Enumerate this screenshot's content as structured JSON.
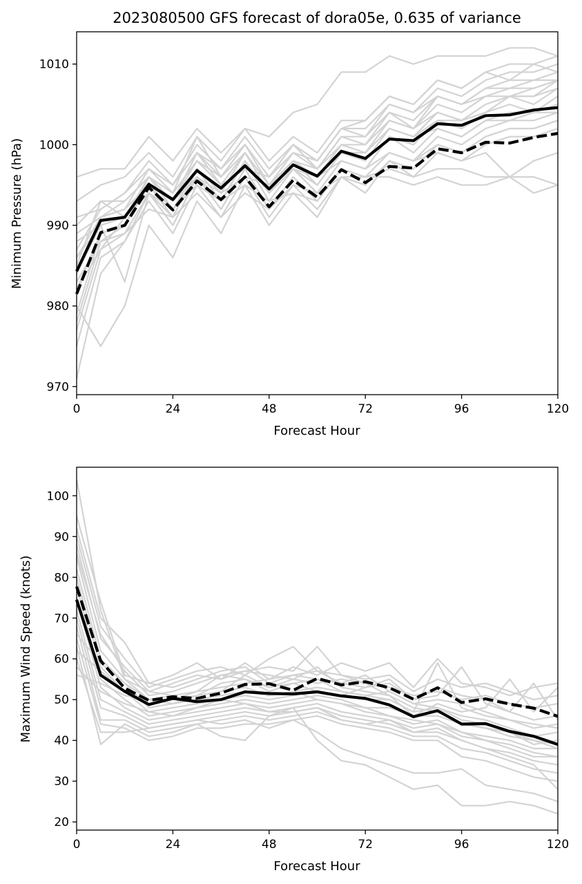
{
  "chart_data": [
    {
      "type": "line",
      "title": "2023080500 GFS forecast of dora05e, 0.635 of variance",
      "xlabel": "Forecast Hour",
      "ylabel": "Minimum Pressure (hPa)",
      "xlim": [
        0,
        120
      ],
      "ylim": [
        969,
        1014
      ],
      "xticks": [
        0,
        24,
        48,
        72,
        96,
        120
      ],
      "yticks": [
        970,
        980,
        990,
        1000,
        1010
      ],
      "grid": false,
      "x": [
        0,
        6,
        12,
        18,
        24,
        30,
        36,
        42,
        48,
        54,
        60,
        66,
        72,
        78,
        84,
        90,
        96,
        102,
        108,
        114,
        120
      ],
      "ensemble_color": "#d3d3d3",
      "ensemble": [
        [
          984,
          991,
          992,
          997,
          994,
          1001,
          996,
          1000,
          996,
          1000,
          997,
          1001,
          1001,
          1004,
          1003,
          1006,
          1005,
          1006,
          1007,
          1007,
          1008
        ],
        [
          978,
          988,
          990,
          995,
          992,
          996,
          993,
          998,
          993,
          997,
          994,
          998,
          997,
          1001,
          1000,
          1003,
          1002,
          1004,
          1005,
          1004,
          1006
        ],
        [
          990,
          993,
          991,
          996,
          993,
          999,
          995,
          999,
          995,
          998,
          996,
          1000,
          999,
          1003,
          1002,
          1004,
          1003,
          1005,
          1006,
          1006,
          1007
        ],
        [
          975,
          986,
          988,
          994,
          990,
          996,
          992,
          997,
          992,
          996,
          993,
          997,
          996,
          999,
          998,
          1001,
          1000,
          1002,
          1003,
          1003,
          1004
        ],
        [
          987,
          992,
          994,
          998,
          995,
          1000,
          997,
          1001,
          997,
          1000,
          998,
          1002,
          1002,
          1005,
          1004,
          1007,
          1006,
          1008,
          1009,
          1009,
          1010
        ],
        [
          982,
          989,
          990,
          996,
          992,
          997,
          994,
          999,
          994,
          998,
          995,
          999,
          998,
          1002,
          1001,
          1003,
          1003,
          1004,
          1006,
          1005,
          1007
        ],
        [
          971,
          984,
          988,
          993,
          989,
          995,
          991,
          996,
          991,
          995,
          992,
          996,
          995,
          998,
          997,
          1000,
          999,
          1001,
          1002,
          1002,
          1003
        ],
        [
          993,
          995,
          996,
          999,
          996,
          1001,
          998,
          1002,
          998,
          1001,
          999,
          1003,
          1003,
          1006,
          1005,
          1008,
          1007,
          1009,
          1010,
          1010,
          1011
        ],
        [
          980,
          975,
          980,
          990,
          986,
          993,
          989,
          995,
          990,
          994,
          991,
          996,
          994,
          998,
          996,
          999,
          998,
          1000,
          1001,
          1001,
          1002
        ],
        [
          986,
          990,
          983,
          994,
          991,
          997,
          993,
          998,
          994,
          997,
          995,
          999,
          999,
          1002,
          1001,
          1004,
          1003,
          1005,
          1006,
          1006,
          1008
        ],
        [
          996,
          997,
          997,
          1001,
          998,
          1002,
          999,
          1002,
          1001,
          1004,
          1005,
          1009,
          1009,
          1011,
          1010,
          1011,
          1011,
          1011,
          1012,
          1012,
          1011
        ],
        [
          985,
          993,
          993,
          996,
          994,
          998,
          995,
          997,
          996,
          1000,
          998,
          1002,
          1003,
          1006,
          1005,
          1008,
          1007,
          1009,
          1008,
          1010,
          1009
        ],
        [
          989,
          991,
          992,
          995,
          993,
          996,
          994,
          996,
          995,
          997,
          996,
          998,
          997,
          999,
          998,
          999,
          998,
          999,
          996,
          998,
          999
        ],
        [
          983,
          988,
          989,
          992,
          991,
          994,
          991,
          994,
          992,
          995,
          994,
          996,
          996,
          996,
          995,
          996,
          995,
          995,
          996,
          996,
          995
        ],
        [
          988,
          990,
          991,
          994,
          992,
          995,
          993,
          995,
          993,
          994,
          993,
          997,
          996,
          997,
          996,
          997,
          997,
          996,
          996,
          994,
          995
        ],
        [
          977,
          987,
          991,
          995,
          993,
          999,
          996,
          1000,
          995,
          999,
          997,
          1001,
          1000,
          1004,
          1002,
          1006,
          1005,
          1007,
          1008,
          1008,
          1009
        ],
        [
          991,
          992,
          994,
          997,
          995,
          999,
          997,
          1000,
          996,
          999,
          998,
          1002,
          1001,
          1005,
          1004,
          1006,
          1005,
          1007,
          1007,
          1008,
          1008
        ],
        [
          984,
          990,
          991,
          996,
          993,
          998,
          995,
          999,
          995,
          998,
          996,
          1000,
          999,
          1002,
          1001,
          1002,
          1001,
          1003,
          1004,
          1004,
          1005
        ],
        [
          979,
          989,
          990,
          995,
          991,
          997,
          993,
          998,
          993,
          997,
          994,
          998,
          997,
          1001,
          999,
          1002,
          1001,
          1003,
          1003,
          1004,
          1004
        ],
        [
          986,
          991,
          993,
          996,
          994,
          998,
          996,
          999,
          995,
          998,
          997,
          1000,
          1000,
          1003,
          1002,
          1005,
          1004,
          1006,
          1006,
          1007,
          1008
        ],
        [
          982,
          987,
          989,
          994,
          990,
          996,
          992,
          997,
          992,
          996,
          993,
          997,
          996,
          999,
          998,
          1000,
          999,
          1001,
          1002,
          1002,
          1003
        ]
      ],
      "series": [
        {
          "style": "solid",
          "color": "#000000",
          "values": [
            984.3,
            990.6,
            991.0,
            995.1,
            993.2,
            996.8,
            994.6,
            997.4,
            994.5,
            997.5,
            996.1,
            999.2,
            998.3,
            1000.7,
            1000.5,
            1002.6,
            1002.4,
            1003.6,
            1003.7,
            1004.3,
            1004.6
          ]
        },
        {
          "style": "dashed",
          "color": "#000000",
          "values": [
            981.5,
            989.1,
            990.0,
            994.7,
            991.9,
            995.5,
            993.2,
            996.0,
            992.3,
            995.6,
            993.5,
            996.9,
            995.3,
            997.3,
            997.1,
            999.5,
            999.0,
            1000.3,
            1000.2,
            1000.9,
            1001.4
          ]
        }
      ]
    },
    {
      "type": "line",
      "title": "",
      "xlabel": "Forecast Hour",
      "ylabel": "Maximum Wind Speed (knots)",
      "xlim": [
        0,
        120
      ],
      "ylim": [
        18,
        107
      ],
      "xticks": [
        0,
        24,
        48,
        72,
        96,
        120
      ],
      "yticks": [
        20,
        30,
        40,
        50,
        60,
        70,
        80,
        90,
        100
      ],
      "grid": false,
      "x": [
        0,
        6,
        12,
        18,
        24,
        30,
        36,
        42,
        48,
        54,
        60,
        66,
        72,
        78,
        84,
        90,
        96,
        102,
        108,
        114,
        120
      ],
      "ensemble_color": "#d3d3d3",
      "ensemble": [
        [
          104,
          72,
          55,
          52,
          54,
          56,
          55,
          59,
          55,
          58,
          56,
          59,
          57,
          59,
          53,
          60,
          54,
          53,
          51,
          53,
          54
        ],
        [
          92,
          70,
          64,
          54,
          53,
          55,
          57,
          58,
          54,
          56,
          57,
          56,
          55,
          56,
          52,
          55,
          53,
          54,
          52,
          50,
          51
        ],
        [
          88,
          65,
          58,
          52,
          51,
          52,
          56,
          55,
          53,
          55,
          54,
          55,
          54,
          53,
          51,
          52,
          50,
          51,
          49,
          48,
          49
        ],
        [
          85,
          62,
          55,
          50,
          50,
          51,
          54,
          55,
          52,
          54,
          55,
          54,
          53,
          54,
          50,
          53,
          51,
          50,
          47,
          45,
          46
        ],
        [
          82,
          60,
          54,
          48,
          49,
          50,
          51,
          52,
          51,
          52,
          53,
          52,
          51,
          52,
          49,
          50,
          49,
          47,
          45,
          43,
          44
        ],
        [
          80,
          58,
          52,
          47,
          48,
          49,
          50,
          51,
          50,
          51,
          52,
          51,
          50,
          50,
          47,
          48,
          46,
          45,
          43,
          41,
          42
        ],
        [
          78,
          55,
          50,
          46,
          47,
          48,
          49,
          50,
          49,
          50,
          51,
          50,
          48,
          48,
          46,
          46,
          44,
          43,
          42,
          39,
          40
        ],
        [
          75,
          53,
          48,
          45,
          46,
          47,
          48,
          49,
          48,
          49,
          50,
          49,
          47,
          46,
          44,
          45,
          42,
          41,
          40,
          38,
          38
        ],
        [
          72,
          50,
          47,
          44,
          45,
          46,
          47,
          48,
          47,
          48,
          49,
          47,
          46,
          45,
          43,
          44,
          41,
          40,
          38,
          36,
          36
        ],
        [
          70,
          48,
          46,
          43,
          44,
          45,
          46,
          47,
          46,
          47,
          48,
          46,
          45,
          44,
          42,
          42,
          40,
          38,
          37,
          35,
          34
        ],
        [
          68,
          45,
          45,
          42,
          43,
          44,
          45,
          46,
          45,
          46,
          47,
          45,
          44,
          43,
          41,
          41,
          38,
          37,
          35,
          33,
          32
        ],
        [
          65,
          44,
          43,
          40,
          41,
          43,
          43,
          44,
          44,
          45,
          46,
          44,
          43,
          42,
          40,
          40,
          36,
          35,
          33,
          31,
          30
        ],
        [
          63,
          39,
          44,
          41,
          42,
          44,
          41,
          40,
          46,
          48,
          40,
          35,
          34,
          31,
          28,
          29,
          24,
          24,
          25,
          24,
          22
        ],
        [
          60,
          42,
          42,
          43,
          44,
          45,
          44,
          45,
          43,
          45,
          42,
          38,
          36,
          34,
          32,
          32,
          33,
          29,
          28,
          27,
          25
        ],
        [
          58,
          52,
          49,
          47,
          46,
          48,
          50,
          49,
          47,
          47,
          48,
          45,
          44,
          45,
          42,
          43,
          40,
          38,
          36,
          34,
          28
        ],
        [
          56,
          54,
          51,
          50,
          49,
          51,
          52,
          53,
          51,
          52,
          50,
          49,
          48,
          46,
          45,
          44,
          42,
          40,
          39,
          37,
          36
        ],
        [
          90,
          68,
          60,
          53,
          55,
          57,
          58,
          56,
          60,
          63,
          57,
          54,
          56,
          52,
          49,
          48,
          45,
          44,
          42,
          40,
          38
        ],
        [
          86,
          66,
          57,
          51,
          52,
          54,
          56,
          57,
          58,
          57,
          63,
          56,
          54,
          51,
          48,
          47,
          44,
          43,
          41,
          40,
          39
        ],
        [
          62,
          57,
          52,
          49,
          50,
          52,
          53,
          54,
          55,
          56,
          55,
          52,
          51,
          50,
          47,
          59,
          48,
          46,
          45,
          44,
          43
        ],
        [
          66,
          59,
          54,
          50,
          51,
          49,
          52,
          56,
          53,
          54,
          52,
          51,
          53,
          55,
          50,
          51,
          58,
          49,
          47,
          54,
          45
        ],
        [
          95,
          74,
          56,
          54,
          56,
          59,
          55,
          57,
          56,
          55,
          58,
          53,
          52,
          51,
          46,
          49,
          47,
          48,
          55,
          47,
          53
        ]
      ],
      "series": [
        {
          "style": "solid",
          "color": "#000000",
          "values": [
            74.5,
            56.0,
            52.0,
            48.8,
            50.3,
            49.5,
            50.0,
            51.9,
            51.5,
            51.4,
            51.9,
            50.9,
            50.3,
            48.7,
            45.8,
            47.3,
            44.0,
            44.1,
            42.2,
            41.0,
            39.0
          ]
        },
        {
          "style": "dashed",
          "color": "#000000",
          "values": [
            77.7,
            59.5,
            52.8,
            49.8,
            50.7,
            50.3,
            51.6,
            53.7,
            53.9,
            52.3,
            55.2,
            53.6,
            54.4,
            52.9,
            50.1,
            52.9,
            49.3,
            50.2,
            48.9,
            47.9,
            45.9
          ]
        }
      ]
    }
  ]
}
